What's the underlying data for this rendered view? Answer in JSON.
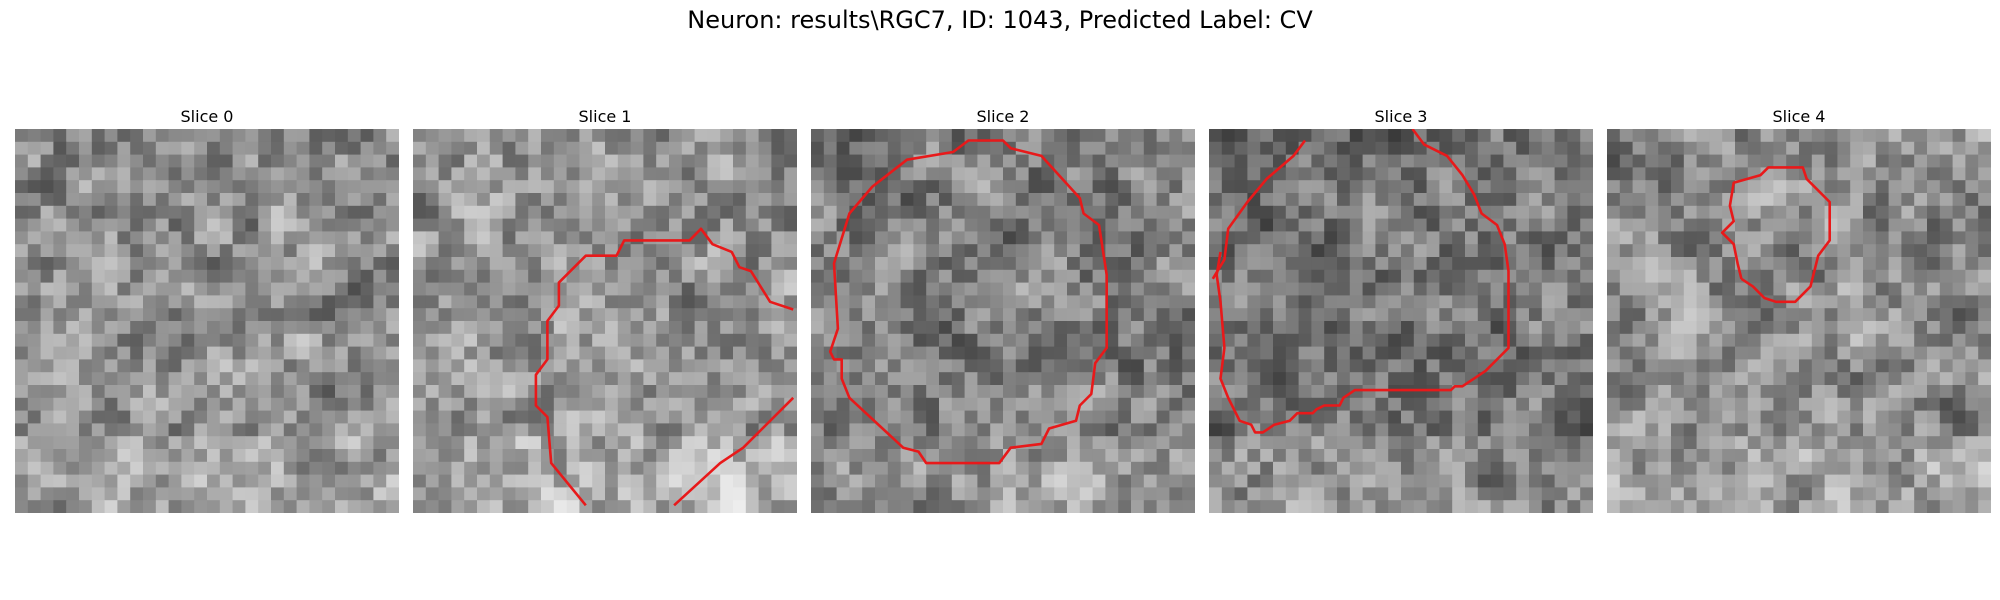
{
  "figure": {
    "title": "Neuron: results\\RGC7, ID: 1043, Predicted Label: CV"
  },
  "panels": [
    {
      "title": "Slice 0",
      "seed": 11,
      "bias": 0.0,
      "contour": []
    },
    {
      "title": "Slice 1",
      "seed": 23,
      "bias": 0.05,
      "contour": [
        [
          [
            0.45,
            0.98
          ],
          [
            0.36,
            0.87
          ],
          [
            0.35,
            0.75
          ],
          [
            0.32,
            0.72
          ],
          [
            0.32,
            0.64
          ],
          [
            0.35,
            0.6
          ],
          [
            0.35,
            0.5
          ],
          [
            0.38,
            0.46
          ],
          [
            0.38,
            0.4
          ],
          [
            0.45,
            0.33
          ],
          [
            0.53,
            0.33
          ],
          [
            0.55,
            0.29
          ],
          [
            0.72,
            0.29
          ],
          [
            0.75,
            0.26
          ],
          [
            0.78,
            0.3
          ],
          [
            0.83,
            0.32
          ],
          [
            0.85,
            0.36
          ],
          [
            0.88,
            0.37
          ],
          [
            0.93,
            0.45
          ],
          [
            0.99,
            0.47
          ]
        ],
        [
          [
            0.68,
            0.98
          ],
          [
            0.8,
            0.87
          ],
          [
            0.86,
            0.83
          ],
          [
            0.99,
            0.7
          ]
        ]
      ]
    },
    {
      "title": "Slice 2",
      "seed": 37,
      "bias": -0.08,
      "contour": [
        [
          [
            0.42,
            0.87
          ],
          [
            0.3,
            0.87
          ],
          [
            0.28,
            0.84
          ],
          [
            0.24,
            0.83
          ],
          [
            0.1,
            0.7
          ],
          [
            0.08,
            0.65
          ],
          [
            0.08,
            0.6
          ],
          [
            0.06,
            0.6
          ],
          [
            0.05,
            0.58
          ],
          [
            0.07,
            0.52
          ],
          [
            0.06,
            0.35
          ],
          [
            0.1,
            0.22
          ],
          [
            0.16,
            0.15
          ],
          [
            0.25,
            0.08
          ],
          [
            0.37,
            0.06
          ],
          [
            0.41,
            0.03
          ],
          [
            0.5,
            0.03
          ],
          [
            0.52,
            0.05
          ],
          [
            0.6,
            0.07
          ],
          [
            0.7,
            0.18
          ],
          [
            0.71,
            0.22
          ],
          [
            0.75,
            0.25
          ],
          [
            0.77,
            0.38
          ],
          [
            0.77,
            0.57
          ],
          [
            0.74,
            0.61
          ],
          [
            0.73,
            0.69
          ],
          [
            0.7,
            0.72
          ],
          [
            0.69,
            0.76
          ],
          [
            0.62,
            0.78
          ],
          [
            0.6,
            0.82
          ],
          [
            0.52,
            0.83
          ],
          [
            0.49,
            0.87
          ],
          [
            0.42,
            0.87
          ]
        ]
      ]
    },
    {
      "title": "Slice 3",
      "seed": 53,
      "bias": -0.12,
      "contour": [
        [
          [
            0.25,
            0.03
          ],
          [
            0.22,
            0.07
          ],
          [
            0.15,
            0.13
          ],
          [
            0.1,
            0.19
          ],
          [
            0.05,
            0.26
          ],
          [
            0.04,
            0.34
          ],
          [
            0.01,
            0.39
          ]
        ],
        [
          [
            0.53,
            0.0
          ],
          [
            0.56,
            0.04
          ],
          [
            0.62,
            0.07
          ],
          [
            0.66,
            0.12
          ],
          [
            0.69,
            0.17
          ],
          [
            0.71,
            0.22
          ],
          [
            0.75,
            0.25
          ],
          [
            0.77,
            0.3
          ],
          [
            0.78,
            0.37
          ],
          [
            0.78,
            0.57
          ],
          [
            0.72,
            0.63
          ],
          [
            0.66,
            0.67
          ],
          [
            0.64,
            0.67
          ],
          [
            0.63,
            0.68
          ],
          [
            0.38,
            0.68
          ],
          [
            0.35,
            0.7
          ],
          [
            0.34,
            0.72
          ],
          [
            0.3,
            0.72
          ],
          [
            0.28,
            0.73
          ],
          [
            0.27,
            0.74
          ],
          [
            0.23,
            0.74
          ],
          [
            0.21,
            0.76
          ],
          [
            0.17,
            0.77
          ],
          [
            0.14,
            0.79
          ],
          [
            0.12,
            0.79
          ],
          [
            0.11,
            0.77
          ],
          [
            0.08,
            0.76
          ],
          [
            0.05,
            0.7
          ],
          [
            0.03,
            0.65
          ],
          [
            0.04,
            0.57
          ],
          [
            0.03,
            0.45
          ],
          [
            0.02,
            0.38
          ],
          [
            0.03,
            0.32
          ]
        ]
      ]
    },
    {
      "title": "Slice 4",
      "seed": 71,
      "bias": 0.0,
      "contour": [
        [
          [
            0.35,
            0.39
          ],
          [
            0.38,
            0.41
          ],
          [
            0.41,
            0.44
          ],
          [
            0.44,
            0.45
          ],
          [
            0.49,
            0.45
          ],
          [
            0.53,
            0.41
          ],
          [
            0.55,
            0.33
          ],
          [
            0.58,
            0.29
          ],
          [
            0.58,
            0.19
          ],
          [
            0.52,
            0.13
          ],
          [
            0.51,
            0.1
          ],
          [
            0.42,
            0.1
          ],
          [
            0.4,
            0.12
          ],
          [
            0.33,
            0.14
          ],
          [
            0.32,
            0.2
          ],
          [
            0.33,
            0.24
          ],
          [
            0.3,
            0.27
          ],
          [
            0.33,
            0.3
          ],
          [
            0.34,
            0.35
          ],
          [
            0.35,
            0.39
          ]
        ]
      ]
    }
  ]
}
